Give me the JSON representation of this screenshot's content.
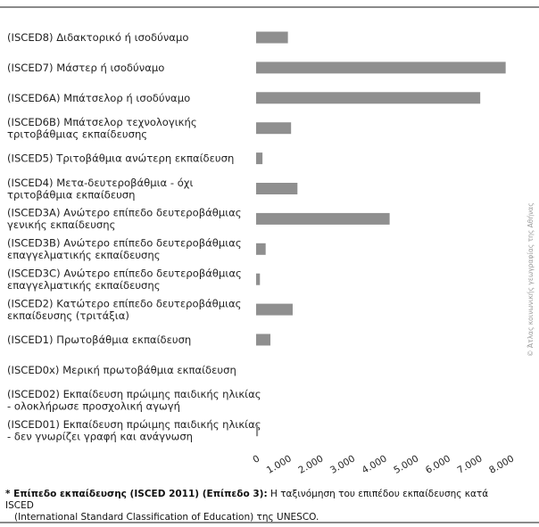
{
  "chart_data": {
    "type": "bar",
    "orientation": "horizontal",
    "title": "",
    "xlabel": "",
    "ylabel": "",
    "xlim": [
      0,
      8000
    ],
    "grid": false,
    "legend": "none",
    "bar_color": "#8f8f8f",
    "xticks": [
      "0",
      "1.000",
      "2.000",
      "3.000",
      "4.000",
      "5.000",
      "6.000",
      "7.000",
      "8.000"
    ],
    "categories": [
      [
        "(ISCED8) Διδακτορικό ή ισοδύναμο"
      ],
      [
        "(ISCED7) Μάστερ ή ισοδύναμο"
      ],
      [
        "(ISCED6A) Μπάτσελορ ή ισοδύναμο"
      ],
      [
        "(ISCED6B) Μπάτσελορ τεχνολογικής",
        "τριτοβάθμιας εκπαίδευσης"
      ],
      [
        "(ISCED5) Τριτοβάθμια ανώτερη εκπαίδευση"
      ],
      [
        "(ISCED4) Μετα-δευτεροβάθμια - όχι",
        "τριτοβάθμια εκπαίδευση"
      ],
      [
        "(ISCED3A) Ανώτερο επίπεδο δευτεροβάθμιας",
        "γενικής εκπαίδευσης"
      ],
      [
        "(ISCED3B) Ανώτερο επίπεδο δευτεροβάθμιας",
        "επαγγελματικής εκπαίδευσης"
      ],
      [
        "(ISCED3C) Ανώτερο επίπεδο δευτεροβάθμιας",
        "επαγγελματικής εκπαίδευσης"
      ],
      [
        "(ISCED2) Κατώτερο επίπεδο δευτεροβάθμιας",
        "εκπαίδευσης (τριτάξια)"
      ],
      [
        "(ISCED1) Πρωτοβάθμια εκπαίδευση"
      ],
      [
        "(ISCED0x) Μερική πρωτοβάθμια εκπαίδευση"
      ],
      [
        "(ISCED02) Εκπαίδευση πρώιμης παιδικής ηλικίας",
        "- ολοκλήρωσε προσχολική αγωγή"
      ],
      [
        "(ISCED01) Εκπαίδευση πρώιμης παιδικής ηλικίας",
        "- δεν γνωρίζει γραφή και ανάγνωση"
      ]
    ],
    "values": [
      1000,
      7850,
      7050,
      1100,
      200,
      1300,
      4200,
      300,
      120,
      1150,
      450,
      0,
      0,
      60
    ]
  },
  "footnote": {
    "bold": "* Επίπεδο εκπαίδευσης (ISCED 2011) (Επίπεδο 3):",
    "text": " Η ταξινόμηση του επιπέδου εκπαίδευσης κατά ISCED",
    "line2": "(International Standard Classification of Education) της UNESCO."
  },
  "credit": "© Άτλας κοινωνικής γεωγραφίας της Αθήνας"
}
